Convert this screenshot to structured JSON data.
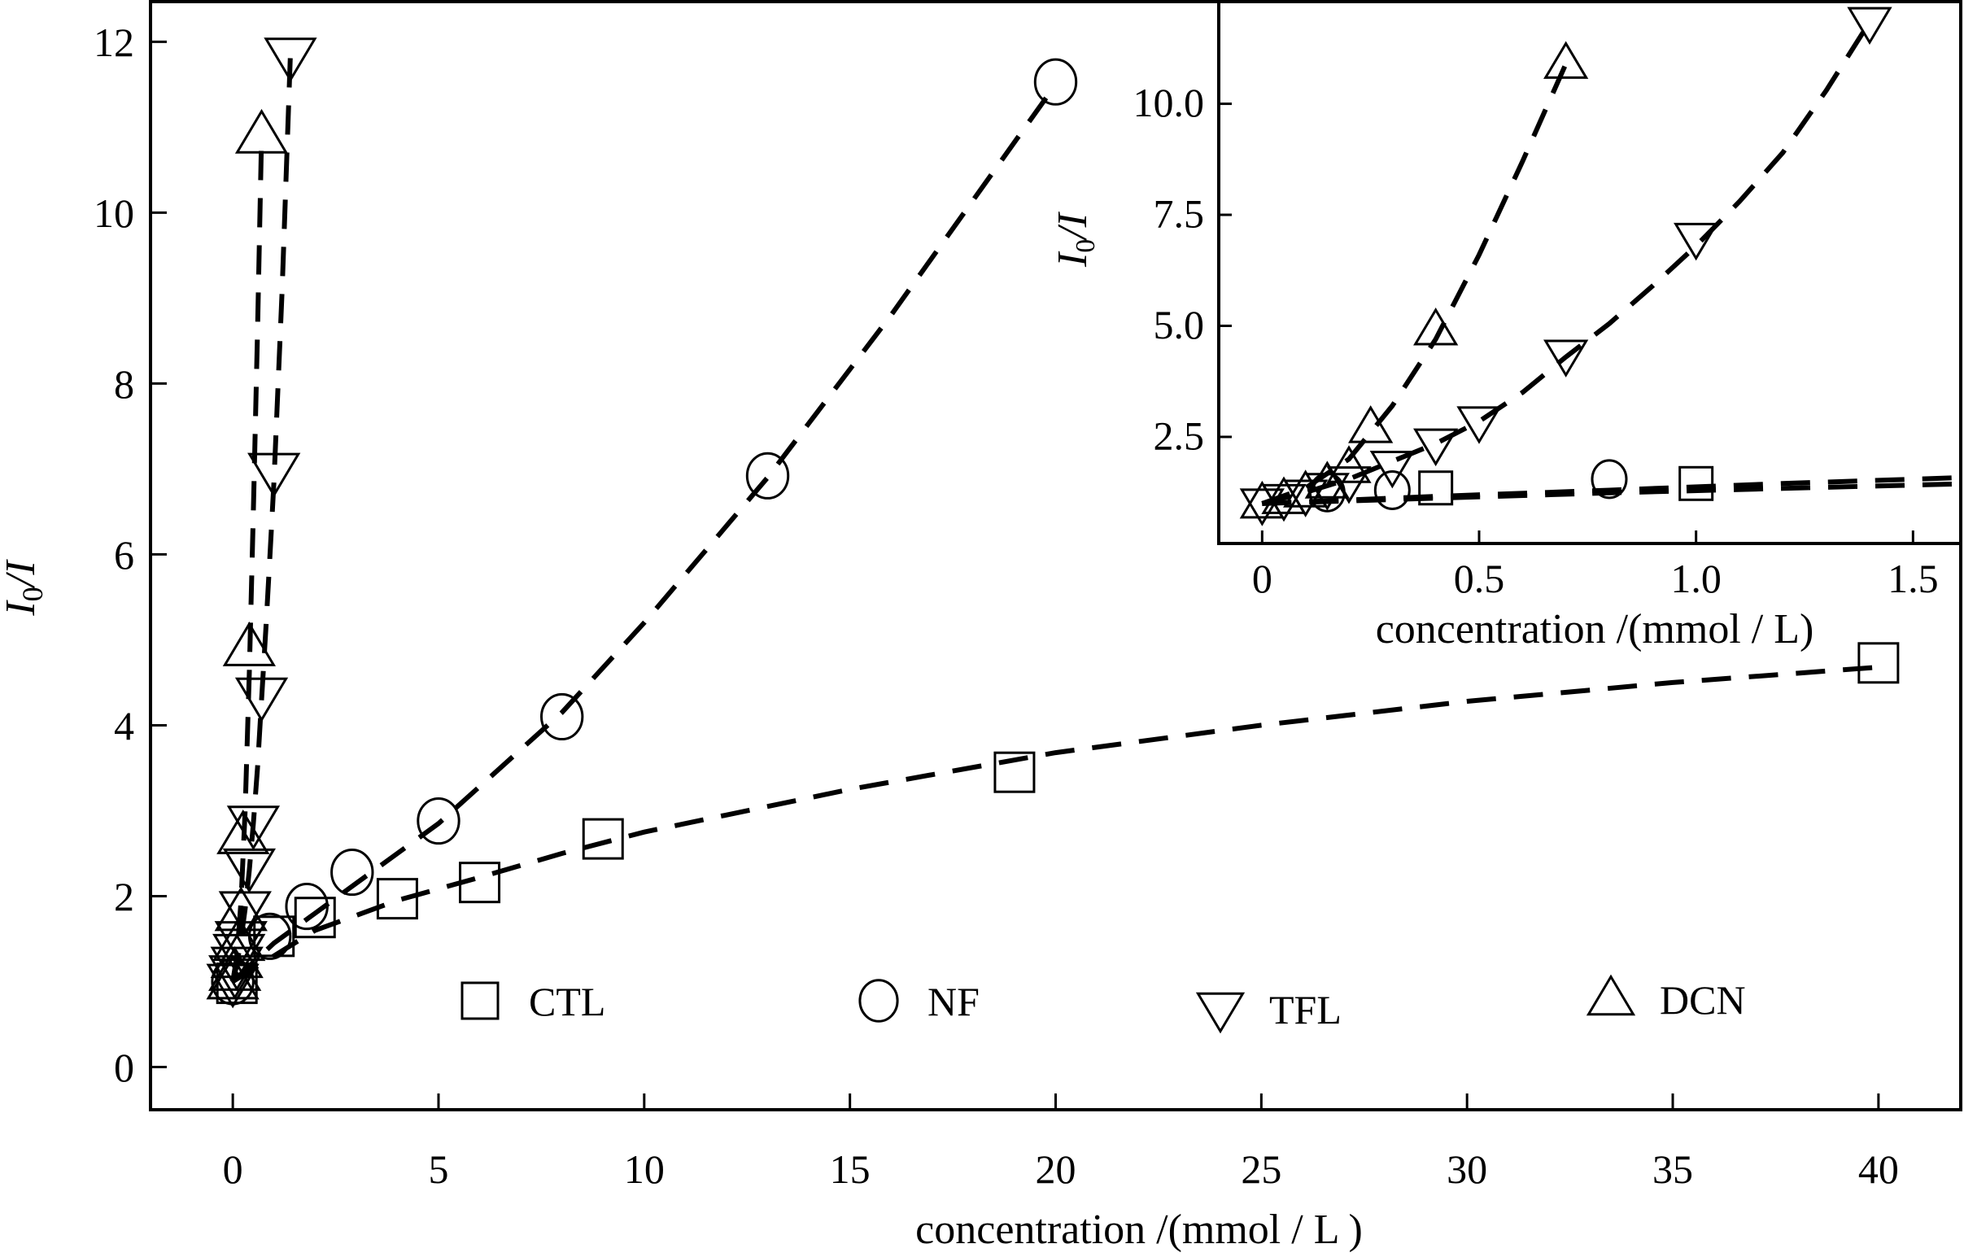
{
  "chart_data": [
    {
      "name": "main",
      "type": "scatter",
      "title": "",
      "xlabel": "concentration /(mmol / L )",
      "ylabel_main": "I",
      "ylabel_sub": "0",
      "ylabel_tail": "/I",
      "xlim": [
        -2,
        42
      ],
      "ylim": [
        -0.5,
        12.47
      ],
      "xticks": [
        0,
        5,
        10,
        15,
        20,
        25,
        30,
        35,
        40
      ],
      "xtick_labels": [
        "0",
        "5",
        "10",
        "15",
        "20",
        "25",
        "30",
        "35",
        "40"
      ],
      "yticks": [
        0,
        2,
        4,
        6,
        8,
        10,
        12
      ],
      "ytick_labels": [
        "0",
        "2",
        "4",
        "6",
        "8",
        "10",
        "12"
      ],
      "grid": false,
      "legend_position": "bottom-center",
      "series": [
        {
          "name": "CTL",
          "marker": "square",
          "x": [
            0.1,
            1.0,
            2.0,
            4.0,
            6.0,
            9.0,
            19.0,
            40.0
          ],
          "y": [
            0.98,
            1.53,
            1.75,
            1.97,
            2.16,
            2.67,
            3.45,
            4.73
          ],
          "fit_x": [
            0,
            2,
            4,
            6,
            8,
            10,
            15,
            20,
            25,
            30,
            35,
            40
          ],
          "fit_y": [
            1.0,
            1.6,
            1.95,
            2.22,
            2.5,
            2.75,
            3.25,
            3.68,
            4.0,
            4.28,
            4.5,
            4.68
          ]
        },
        {
          "name": "NF",
          "marker": "circle",
          "x": [
            0,
            0.9,
            1.8,
            2.9,
            5.0,
            8.0,
            13.0,
            20.0
          ],
          "y": [
            1.0,
            1.53,
            1.88,
            2.28,
            2.88,
            4.1,
            6.92,
            11.53
          ],
          "fit_x": [
            0,
            1,
            2,
            3,
            5,
            8,
            10,
            13,
            16,
            20
          ],
          "fit_y": [
            1.0,
            1.45,
            1.8,
            2.15,
            2.85,
            4.15,
            5.2,
            6.9,
            8.8,
            11.5
          ]
        },
        {
          "name": "TFL",
          "marker": "triangle-down",
          "x": [
            0,
            0.05,
            0.1,
            0.15,
            0.2,
            0.3,
            0.4,
            0.5,
            0.7,
            1.0,
            1.4
          ],
          "y": [
            1.0,
            1.1,
            1.2,
            1.35,
            1.5,
            1.85,
            2.35,
            2.85,
            4.35,
            6.98,
            11.84
          ],
          "fit_x": [
            0,
            0.1,
            0.2,
            0.3,
            0.4,
            0.5,
            0.6,
            0.7,
            0.8,
            0.9,
            1.0,
            1.2,
            1.4
          ],
          "fit_y": [
            1.0,
            1.2,
            1.5,
            1.85,
            2.3,
            2.85,
            3.5,
            4.3,
            5.1,
            5.95,
            6.85,
            9.1,
            11.84
          ]
        },
        {
          "name": "DCN",
          "marker": "triangle-up",
          "x": [
            0,
            0.05,
            0.1,
            0.15,
            0.2,
            0.25,
            0.4,
            0.7
          ],
          "y": [
            1.0,
            1.1,
            1.25,
            1.45,
            1.8,
            2.7,
            4.9,
            10.9
          ],
          "fit_x": [
            0,
            0.1,
            0.2,
            0.3,
            0.4,
            0.5,
            0.6,
            0.7
          ],
          "fit_y": [
            1.0,
            1.3,
            1.95,
            3.0,
            4.6,
            6.5,
            8.6,
            10.9
          ]
        }
      ]
    },
    {
      "name": "inset",
      "type": "scatter",
      "title": "",
      "xlabel": "concentration /(mmol / L)",
      "ylabel_main": "I",
      "ylabel_sub": "0",
      "ylabel_tail": "/I",
      "xlim": [
        -0.1,
        1.61
      ],
      "ylim": [
        0.1,
        12.3
      ],
      "xticks": [
        0,
        0.5,
        1.0,
        1.5
      ],
      "xtick_labels": [
        "0",
        "0.5",
        "1.0",
        "1.5"
      ],
      "yticks": [
        2.5,
        5.0,
        7.5,
        10.0
      ],
      "ytick_labels": [
        "2.5",
        "5.0",
        "7.5",
        "10.0"
      ],
      "grid": false,
      "series": [
        {
          "name": "CTL",
          "marker": "square",
          "x": [
            0.4,
            1.0
          ],
          "y": [
            1.35,
            1.45
          ],
          "fit_x": [
            0,
            0.4,
            0.8,
            1.2,
            1.6
          ],
          "fit_y": [
            1.0,
            1.12,
            1.24,
            1.34,
            1.44
          ]
        },
        {
          "name": "NF",
          "marker": "circle",
          "x": [
            0.15,
            0.3,
            0.8
          ],
          "y": [
            1.25,
            1.3,
            1.55
          ],
          "fit_x": [
            0,
            0.4,
            0.8,
            1.2,
            1.6
          ],
          "fit_y": [
            1.0,
            1.16,
            1.3,
            1.45,
            1.58
          ]
        },
        {
          "name": "TFL",
          "marker": "triangle-down",
          "x": [
            0,
            0.05,
            0.1,
            0.15,
            0.2,
            0.3,
            0.4,
            0.5,
            0.7,
            1.0,
            1.4
          ],
          "y": [
            1.0,
            1.1,
            1.2,
            1.35,
            1.5,
            1.85,
            2.35,
            2.85,
            4.35,
            6.98,
            11.84
          ],
          "fit_x": [
            0,
            0.1,
            0.2,
            0.3,
            0.4,
            0.5,
            0.6,
            0.7,
            0.8,
            0.9,
            1.0,
            1.1,
            1.2,
            1.3,
            1.4
          ],
          "fit_y": [
            1.0,
            1.25,
            1.55,
            1.95,
            2.35,
            2.85,
            3.5,
            4.3,
            5.05,
            5.9,
            6.8,
            7.8,
            8.9,
            10.3,
            11.84
          ]
        },
        {
          "name": "DCN",
          "marker": "triangle-up",
          "x": [
            0,
            0.05,
            0.1,
            0.15,
            0.2,
            0.25,
            0.4,
            0.7
          ],
          "y": [
            1.0,
            1.1,
            1.25,
            1.45,
            1.8,
            2.7,
            4.9,
            10.9
          ],
          "fit_x": [
            0,
            0.1,
            0.2,
            0.3,
            0.4,
            0.5,
            0.6,
            0.7
          ],
          "fit_y": [
            1.0,
            1.35,
            2.0,
            3.2,
            4.7,
            6.6,
            8.7,
            10.9
          ]
        }
      ]
    }
  ],
  "legend": [
    {
      "name": "CTL",
      "marker": "square"
    },
    {
      "name": "NF",
      "marker": "circle"
    },
    {
      "name": "TFL",
      "marker": "triangle-down"
    },
    {
      "name": "DCN",
      "marker": "triangle-up"
    }
  ],
  "colors": {
    "ink": "#000000",
    "background": "#ffffff"
  }
}
